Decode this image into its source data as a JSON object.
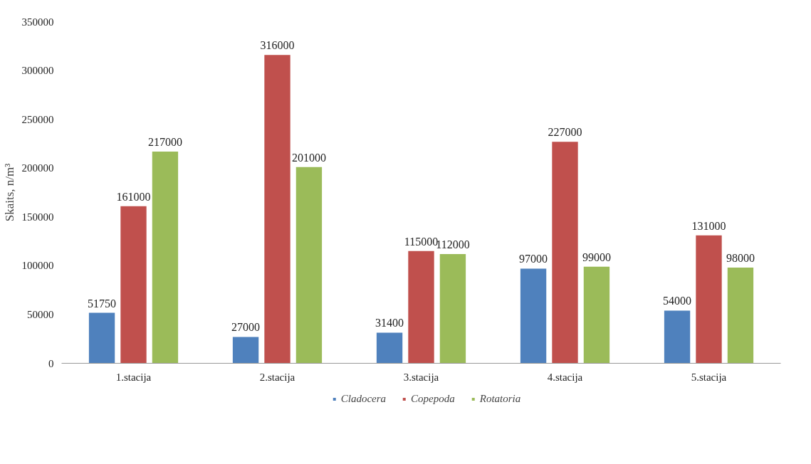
{
  "chart_data": {
    "type": "bar",
    "ylabel": "Skaits, n/m³",
    "categories": [
      "1.stacija",
      "2.stacija",
      "3.stacija",
      "4.stacija",
      "5.stacija"
    ],
    "series": [
      {
        "name": "Cladocera",
        "color": "#4f81bd",
        "values": [
          51750,
          27000,
          31400,
          97000,
          54000
        ]
      },
      {
        "name": "Copepoda",
        "color": "#c0504d",
        "values": [
          161000,
          316000,
          115000,
          227000,
          131000
        ]
      },
      {
        "name": "Rotatoria",
        "color": "#9bbb59",
        "values": [
          217000,
          201000,
          112000,
          99000,
          98000
        ]
      }
    ],
    "ylim": [
      0,
      350000
    ],
    "yticks": [
      0,
      50000,
      100000,
      150000,
      200000,
      250000,
      300000,
      350000
    ],
    "grid": false,
    "legend": "bottom",
    "data_labels": true
  }
}
